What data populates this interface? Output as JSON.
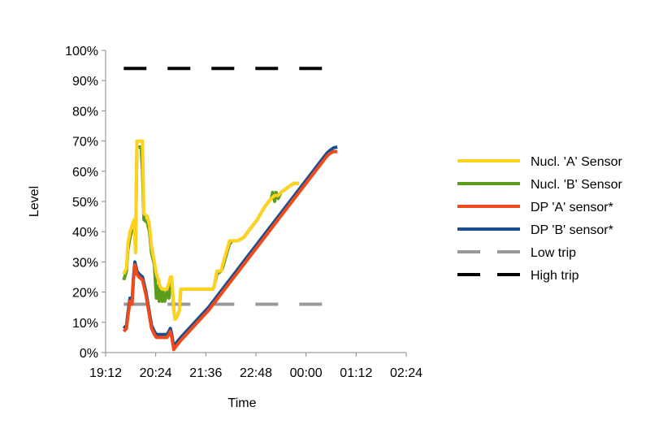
{
  "chart_data": {
    "type": "line",
    "xlabel": "Time",
    "ylabel": "Level",
    "x_ticks": [
      "19:12",
      "20:24",
      "21:36",
      "22:48",
      "00:00",
      "01:12",
      "02:24"
    ],
    "x_ticks_minutes": [
      1152,
      1224,
      1296,
      1368,
      1440,
      1512,
      1584
    ],
    "xlim_minutes": [
      1152,
      1584
    ],
    "y_ticks": [
      "0%",
      "10%",
      "20%",
      "30%",
      "40%",
      "50%",
      "60%",
      "70%",
      "80%",
      "90%",
      "100%"
    ],
    "y_ticks_values": [
      0,
      10,
      20,
      30,
      40,
      50,
      60,
      70,
      80,
      90,
      100
    ],
    "ylim": [
      0,
      100
    ],
    "grid": false,
    "legend_position": "right",
    "series": [
      {
        "name": "Nucl. 'A' Sensor",
        "color": "#FFD21F",
        "dash": "solid",
        "points": [
          [
            1178,
            26
          ],
          [
            1182,
            28
          ],
          [
            1184,
            36
          ],
          [
            1187,
            40
          ],
          [
            1190,
            42
          ],
          [
            1193,
            44
          ],
          [
            1195,
            33
          ],
          [
            1197,
            70
          ],
          [
            1205,
            70
          ],
          [
            1207,
            46
          ],
          [
            1212,
            45
          ],
          [
            1215,
            42
          ],
          [
            1218,
            35
          ],
          [
            1222,
            30
          ],
          [
            1225,
            26
          ],
          [
            1228,
            24
          ],
          [
            1230,
            22
          ],
          [
            1233,
            21
          ],
          [
            1240,
            21
          ],
          [
            1243,
            23
          ],
          [
            1245,
            25
          ],
          [
            1247,
            25
          ],
          [
            1250,
            14
          ],
          [
            1252,
            11
          ],
          [
            1255,
            12
          ],
          [
            1258,
            14
          ],
          [
            1260,
            21
          ],
          [
            1300,
            21
          ],
          [
            1306,
            21
          ],
          [
            1308,
            22
          ],
          [
            1312,
            27
          ],
          [
            1318,
            27
          ],
          [
            1320,
            29
          ],
          [
            1325,
            33
          ],
          [
            1330,
            37
          ],
          [
            1334,
            37
          ],
          [
            1342,
            37
          ],
          [
            1350,
            38
          ],
          [
            1370,
            44
          ],
          [
            1380,
            48
          ],
          [
            1390,
            51
          ],
          [
            1395,
            52
          ],
          [
            1400,
            52
          ],
          [
            1404,
            53
          ],
          [
            1410,
            54
          ],
          [
            1416,
            55
          ],
          [
            1422,
            56
          ],
          [
            1430,
            56
          ]
        ]
      },
      {
        "name": "Nucl. 'B' Sensor",
        "color": "#5A9C1C",
        "dash": "solid",
        "points": [
          [
            1178,
            24
          ],
          [
            1182,
            27
          ],
          [
            1184,
            34
          ],
          [
            1187,
            38
          ],
          [
            1190,
            41
          ],
          [
            1193,
            43
          ],
          [
            1195,
            34
          ],
          [
            1197,
            68
          ],
          [
            1203,
            68
          ],
          [
            1205,
            60
          ],
          [
            1207,
            44
          ],
          [
            1212,
            43
          ],
          [
            1215,
            40
          ],
          [
            1218,
            33
          ],
          [
            1222,
            29
          ],
          [
            1225,
            18
          ],
          [
            1227,
            22
          ],
          [
            1229,
            17
          ],
          [
            1231,
            21
          ],
          [
            1233,
            17
          ],
          [
            1235,
            20
          ],
          [
            1237,
            17
          ],
          [
            1240,
            20
          ],
          [
            1243,
            18
          ],
          [
            1245,
            24
          ],
          [
            1247,
            24
          ],
          [
            1250,
            14
          ],
          [
            1252,
            11
          ],
          [
            1255,
            12
          ],
          [
            1258,
            14
          ],
          [
            1260,
            21
          ],
          [
            1306,
            21
          ],
          [
            1308,
            22
          ],
          [
            1312,
            26
          ],
          [
            1318,
            27
          ],
          [
            1320,
            28
          ],
          [
            1325,
            32
          ],
          [
            1330,
            36
          ],
          [
            1334,
            37
          ],
          [
            1342,
            37
          ],
          [
            1350,
            38
          ],
          [
            1370,
            44
          ],
          [
            1380,
            48
          ],
          [
            1390,
            51
          ],
          [
            1392,
            53
          ],
          [
            1395,
            50
          ],
          [
            1397,
            53
          ],
          [
            1400,
            51
          ],
          [
            1404,
            53
          ],
          [
            1410,
            54
          ],
          [
            1416,
            55
          ],
          [
            1422,
            56
          ],
          [
            1430,
            56
          ]
        ]
      },
      {
        "name": "DP 'A' sensor*",
        "color": "#EE4A1C",
        "dash": "solid",
        "points": [
          [
            1178,
            7
          ],
          [
            1182,
            8
          ],
          [
            1184,
            12
          ],
          [
            1187,
            17
          ],
          [
            1190,
            16
          ],
          [
            1192,
            24
          ],
          [
            1194,
            29
          ],
          [
            1197,
            26
          ],
          [
            1200,
            25
          ],
          [
            1205,
            24
          ],
          [
            1210,
            19
          ],
          [
            1215,
            12
          ],
          [
            1218,
            8
          ],
          [
            1222,
            6
          ],
          [
            1225,
            5
          ],
          [
            1240,
            5
          ],
          [
            1243,
            6
          ],
          [
            1245,
            7
          ],
          [
            1247,
            5
          ],
          [
            1250,
            1
          ],
          [
            1253,
            2
          ],
          [
            1260,
            4
          ],
          [
            1280,
            9
          ],
          [
            1300,
            14
          ],
          [
            1320,
            20
          ],
          [
            1340,
            26
          ],
          [
            1360,
            32
          ],
          [
            1380,
            38
          ],
          [
            1400,
            44
          ],
          [
            1420,
            50
          ],
          [
            1440,
            56
          ],
          [
            1460,
            62
          ],
          [
            1470,
            65
          ],
          [
            1475,
            66
          ],
          [
            1480,
            66.5
          ],
          [
            1485,
            66.5
          ]
        ]
      },
      {
        "name": "DP 'B' sensor*",
        "color": "#1A4E8C",
        "dash": "solid",
        "points": [
          [
            1178,
            8
          ],
          [
            1182,
            9
          ],
          [
            1184,
            13
          ],
          [
            1187,
            18
          ],
          [
            1190,
            17
          ],
          [
            1192,
            25
          ],
          [
            1194,
            30
          ],
          [
            1197,
            27
          ],
          [
            1200,
            26
          ],
          [
            1205,
            25
          ],
          [
            1210,
            20
          ],
          [
            1215,
            13
          ],
          [
            1218,
            9
          ],
          [
            1222,
            7
          ],
          [
            1225,
            6
          ],
          [
            1240,
            6
          ],
          [
            1243,
            7
          ],
          [
            1245,
            8
          ],
          [
            1247,
            6
          ],
          [
            1250,
            2
          ],
          [
            1253,
            3
          ],
          [
            1260,
            5
          ],
          [
            1280,
            10
          ],
          [
            1300,
            15
          ],
          [
            1320,
            21
          ],
          [
            1340,
            27
          ],
          [
            1360,
            33
          ],
          [
            1380,
            39
          ],
          [
            1400,
            45
          ],
          [
            1420,
            51
          ],
          [
            1440,
            57
          ],
          [
            1460,
            63
          ],
          [
            1470,
            66
          ],
          [
            1475,
            67
          ],
          [
            1480,
            67.8
          ],
          [
            1485,
            68
          ]
        ]
      },
      {
        "name": "Low trip",
        "color": "#999999",
        "dash": "dashed",
        "points": [
          [
            1178,
            16
          ],
          [
            1485,
            16
          ]
        ]
      },
      {
        "name": "High trip",
        "color": "#000000",
        "dash": "dashed",
        "points": [
          [
            1178,
            94
          ],
          [
            1485,
            94
          ]
        ]
      }
    ]
  }
}
